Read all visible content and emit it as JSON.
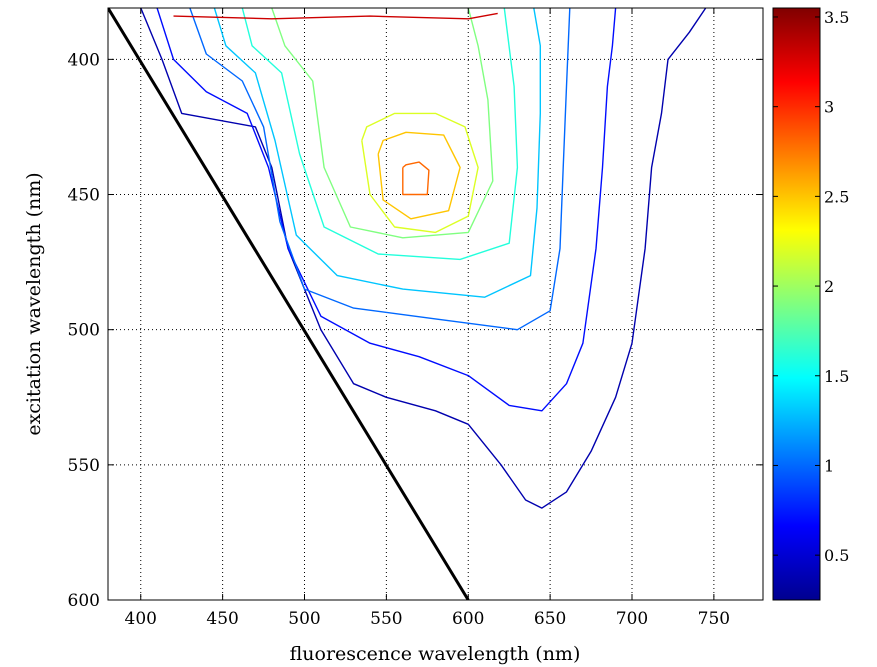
{
  "chart_data": {
    "type": "contour",
    "xlabel": "fluorescence wavelength (nm)",
    "ylabel": "excitation wavelength (nm)",
    "xlim": [
      380,
      780
    ],
    "ylim": [
      381,
      600
    ],
    "y_reversed": true,
    "grid": true,
    "xticks": [
      400,
      450,
      500,
      550,
      600,
      650,
      700,
      750
    ],
    "yticks": [
      400,
      450,
      500,
      550,
      600
    ],
    "colorbar": {
      "colormap": "jet",
      "range": [
        0.25,
        3.55
      ],
      "ticks": [
        0.5,
        1,
        1.5,
        2,
        2.5,
        3,
        3.5
      ]
    },
    "diagonal_line": {
      "from": [
        380,
        381
      ],
      "to": [
        600,
        600
      ],
      "color": "#000000"
    },
    "peak": {
      "x": 568,
      "y": 445,
      "value": 2.9
    },
    "contour_levels": [
      {
        "level": 0.4,
        "points": [
          [
            400,
            381
          ],
          [
            413,
            400
          ],
          [
            425,
            420
          ],
          [
            470,
            425
          ],
          [
            480,
            440
          ],
          [
            490,
            470
          ],
          [
            510,
            500
          ],
          [
            530,
            520
          ],
          [
            550,
            525
          ],
          [
            580,
            530
          ],
          [
            600,
            535
          ],
          [
            620,
            550
          ],
          [
            635,
            563
          ],
          [
            645,
            566
          ],
          [
            660,
            560
          ],
          [
            675,
            545
          ],
          [
            690,
            525
          ],
          [
            700,
            505
          ],
          [
            708,
            470
          ],
          [
            712,
            440
          ],
          [
            718,
            420
          ],
          [
            722,
            400
          ],
          [
            735,
            390
          ],
          [
            745,
            381
          ]
        ]
      },
      {
        "level": 0.7,
        "points": [
          [
            410,
            381
          ],
          [
            420,
            400
          ],
          [
            440,
            412
          ],
          [
            465,
            420
          ],
          [
            478,
            440
          ],
          [
            490,
            470
          ],
          [
            510,
            495
          ],
          [
            540,
            505
          ],
          [
            570,
            510
          ],
          [
            600,
            517
          ],
          [
            625,
            528
          ],
          [
            645,
            530
          ],
          [
            660,
            520
          ],
          [
            670,
            505
          ],
          [
            678,
            470
          ],
          [
            682,
            440
          ],
          [
            685,
            410
          ],
          [
            688,
            395
          ],
          [
            690,
            381
          ]
        ]
      },
      {
        "level": 1.0,
        "points": [
          [
            430,
            381
          ],
          [
            440,
            398
          ],
          [
            462,
            408
          ],
          [
            475,
            425
          ],
          [
            485,
            460
          ],
          [
            500,
            485
          ],
          [
            530,
            492
          ],
          [
            580,
            496
          ],
          [
            630,
            500
          ],
          [
            650,
            493
          ],
          [
            656,
            470
          ],
          [
            658,
            440
          ],
          [
            660,
            410
          ],
          [
            662,
            381
          ]
        ]
      },
      {
        "level": 1.3,
        "points": [
          [
            445,
            381
          ],
          [
            452,
            395
          ],
          [
            470,
            405
          ],
          [
            482,
            430
          ],
          [
            495,
            465
          ],
          [
            520,
            480
          ],
          [
            560,
            485
          ],
          [
            610,
            488
          ],
          [
            638,
            480
          ],
          [
            642,
            455
          ],
          [
            644,
            420
          ],
          [
            644,
            395
          ],
          [
            640,
            381
          ]
        ]
      },
      {
        "level": 1.6,
        "points": [
          [
            462,
            381
          ],
          [
            468,
            395
          ],
          [
            486,
            405
          ],
          [
            497,
            435
          ],
          [
            512,
            462
          ],
          [
            545,
            472
          ],
          [
            595,
            474
          ],
          [
            625,
            468
          ],
          [
            630,
            440
          ],
          [
            628,
            410
          ],
          [
            622,
            381
          ]
        ]
      },
      {
        "level": 1.9,
        "points": [
          [
            480,
            381
          ],
          [
            488,
            395
          ],
          [
            505,
            408
          ],
          [
            512,
            440
          ],
          [
            528,
            462
          ],
          [
            560,
            466
          ],
          [
            600,
            464
          ],
          [
            615,
            445
          ],
          [
            612,
            415
          ],
          [
            606,
            395
          ],
          [
            600,
            381
          ]
        ]
      },
      {
        "level": 2.2,
        "points": [
          [
            535,
            430
          ],
          [
            540,
            450
          ],
          [
            555,
            462
          ],
          [
            580,
            464
          ],
          [
            600,
            458
          ],
          [
            606,
            440
          ],
          [
            598,
            425
          ],
          [
            580,
            420
          ],
          [
            555,
            420
          ],
          [
            538,
            425
          ],
          [
            535,
            430
          ]
        ]
      },
      {
        "level": 2.5,
        "points": [
          [
            545,
            435
          ],
          [
            548,
            452
          ],
          [
            565,
            459
          ],
          [
            588,
            456
          ],
          [
            595,
            440
          ],
          [
            585,
            428
          ],
          [
            562,
            427
          ],
          [
            548,
            430
          ],
          [
            545,
            435
          ]
        ]
      },
      {
        "level": 2.8,
        "points": [
          [
            560,
            440
          ],
          [
            560,
            450
          ],
          [
            575,
            450
          ],
          [
            576,
            441
          ],
          [
            570,
            438
          ],
          [
            562,
            439
          ],
          [
            560,
            440
          ]
        ]
      },
      {
        "level": 3.3,
        "points": [
          [
            420,
            384
          ],
          [
            480,
            385
          ],
          [
            540,
            384
          ],
          [
            600,
            385
          ],
          [
            618,
            383
          ]
        ]
      }
    ]
  }
}
